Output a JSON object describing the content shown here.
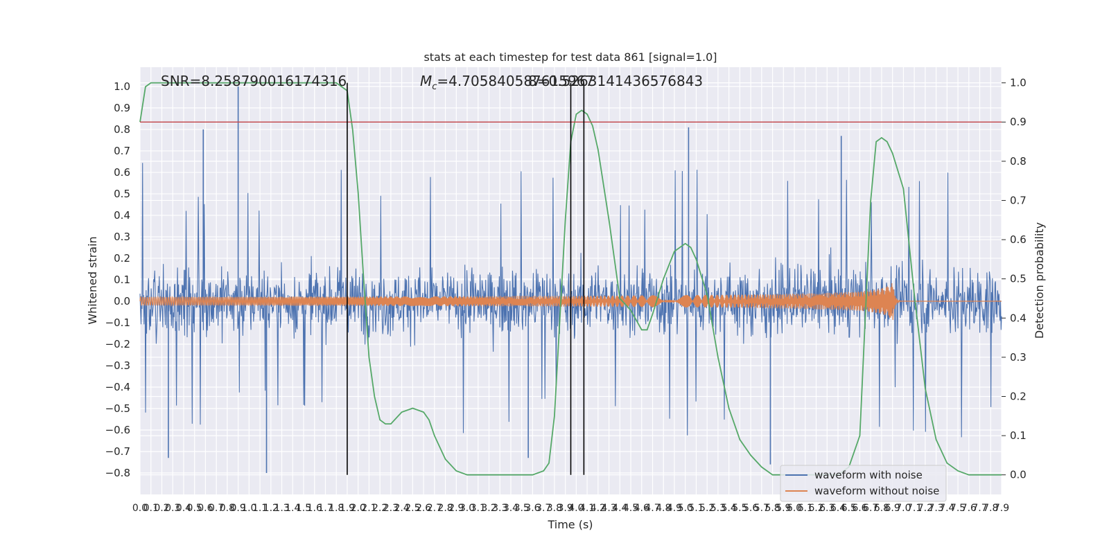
{
  "chart_data": {
    "type": "line",
    "title": "stats at each timestep for test data 861 [signal=1.0]",
    "xlabel": "Time (s)",
    "ylabel": "Whitened strain",
    "ylabel_right": "Detection probability",
    "xlim": [
      0.0,
      7.9
    ],
    "ylim": [
      -0.9,
      1.09
    ],
    "ylim_right": [
      -0.05,
      1.04
    ],
    "yticks": [
      "−0.8",
      "−0.7",
      "−0.6",
      "−0.5",
      "−0.4",
      "−0.3",
      "−0.2",
      "−0.1",
      "0.0",
      "0.1",
      "0.2",
      "0.3",
      "0.4",
      "0.5",
      "0.6",
      "0.7",
      "0.8",
      "0.9",
      "1.0"
    ],
    "yticks_right": [
      "0.0",
      "0.1",
      "0.2",
      "0.3",
      "0.4",
      "0.5",
      "0.6",
      "0.7",
      "0.8",
      "0.9",
      "1.0"
    ],
    "xticks": [
      "0.0",
      "0.1",
      "0.2",
      "0.3",
      "0.4",
      "0.5",
      "0.6",
      "0.7",
      "0.8",
      "0.9",
      "1.0",
      "1.1",
      "1.2",
      "1.3",
      "1.4",
      "1.5",
      "1.6",
      "1.7",
      "1.8",
      "1.9",
      "2.0",
      "2.1",
      "2.2",
      "2.3",
      "2.4",
      "2.5",
      "2.6",
      "2.7",
      "2.8",
      "2.9",
      "3.0",
      "3.1",
      "3.2",
      "3.3",
      "3.4",
      "3.5",
      "3.6",
      "3.7",
      "3.8",
      "3.9",
      "4.0",
      "4.1",
      "4.2",
      "4.3",
      "4.4",
      "4.5",
      "4.6",
      "4.7",
      "4.8",
      "4.9",
      "5.0",
      "5.1",
      "5.2",
      "5.3",
      "5.4",
      "5.5",
      "5.6",
      "5.7",
      "5.8",
      "5.9",
      "6.0",
      "6.1",
      "6.2",
      "6.3",
      "6.4",
      "6.5",
      "6.6",
      "6.7",
      "6.8",
      "6.9",
      "7.0",
      "7.1",
      "7.2",
      "7.3",
      "7.4",
      "7.5",
      "7.6",
      "7.7",
      "7.8",
      "7.9"
    ],
    "annotations": {
      "snr": "SNR=8.258790016174316",
      "mc": "=4.705840587615967",
      "mc_symbol": "M",
      "mc_sub": "c",
      "overlap": "8=0.5263141436576843"
    },
    "threshold_line": {
      "y_right": 0.9,
      "color": "#c44e52"
    },
    "vertical_lines": [
      1.9,
      3.95,
      4.07
    ],
    "legend": [
      "waveform with noise",
      "waveform without noise"
    ],
    "series": [
      {
        "name": "waveform with noise",
        "color": "#4c72b0",
        "description": "whitened noisy strain, envelope roughly ±0.5 with spikes",
        "peak_values": [
          [
            0.9,
            1.0
          ],
          [
            0.58,
            0.8
          ],
          [
            5.03,
            0.81
          ],
          [
            6.43,
            0.77
          ],
          [
            1.16,
            -0.8
          ],
          [
            0.26,
            -0.73
          ],
          [
            3.56,
            -0.73
          ],
          [
            5.78,
            -0.76
          ]
        ]
      },
      {
        "name": "waveform without noise",
        "color": "#dd8452",
        "description": "chirp waveform with growing amplitude until merger",
        "amplitude_start": 0.02,
        "amplitude_peak": 0.13,
        "merger_time": 6.9
      },
      {
        "name": "detection probability",
        "color": "#55a868",
        "axis": "right",
        "x": [
          0.0,
          0.05,
          0.1,
          0.3,
          0.6,
          1.0,
          1.5,
          1.8,
          1.9,
          1.95,
          2.0,
          2.05,
          2.1,
          2.15,
          2.2,
          2.25,
          2.3,
          2.4,
          2.5,
          2.6,
          2.65,
          2.7,
          2.75,
          2.8,
          2.9,
          3.0,
          3.1,
          3.3,
          3.5,
          3.6,
          3.7,
          3.75,
          3.8,
          3.85,
          3.9,
          3.95,
          4.0,
          4.05,
          4.1,
          4.15,
          4.2,
          4.3,
          4.4,
          4.5,
          4.6,
          4.65,
          4.7,
          4.8,
          4.9,
          5.0,
          5.05,
          5.1,
          5.2,
          5.3,
          5.4,
          5.5,
          5.6,
          5.7,
          5.8,
          5.9,
          6.0,
          6.1,
          6.2,
          6.3,
          6.4,
          6.5,
          6.6,
          6.65,
          6.7,
          6.75,
          6.8,
          6.85,
          6.9,
          7.0,
          7.1,
          7.2,
          7.3,
          7.4,
          7.5,
          7.6,
          7.7,
          7.8,
          7.9
        ],
        "values": [
          0.9,
          0.99,
          1.0,
          1.0,
          1.0,
          1.0,
          1.0,
          1.0,
          0.98,
          0.88,
          0.72,
          0.5,
          0.3,
          0.2,
          0.14,
          0.13,
          0.13,
          0.16,
          0.17,
          0.16,
          0.14,
          0.1,
          0.07,
          0.04,
          0.01,
          0.0,
          0.0,
          0.0,
          0.0,
          0.0,
          0.01,
          0.03,
          0.15,
          0.4,
          0.65,
          0.85,
          0.92,
          0.93,
          0.92,
          0.89,
          0.83,
          0.65,
          0.45,
          0.42,
          0.37,
          0.37,
          0.41,
          0.5,
          0.57,
          0.59,
          0.58,
          0.55,
          0.46,
          0.3,
          0.17,
          0.09,
          0.05,
          0.02,
          0.0,
          0.0,
          0.0,
          0.0,
          0.0,
          0.0,
          0.0,
          0.02,
          0.1,
          0.4,
          0.7,
          0.85,
          0.86,
          0.85,
          0.82,
          0.73,
          0.46,
          0.22,
          0.09,
          0.03,
          0.01,
          0.0,
          0.0,
          0.0,
          0.0
        ]
      }
    ]
  }
}
